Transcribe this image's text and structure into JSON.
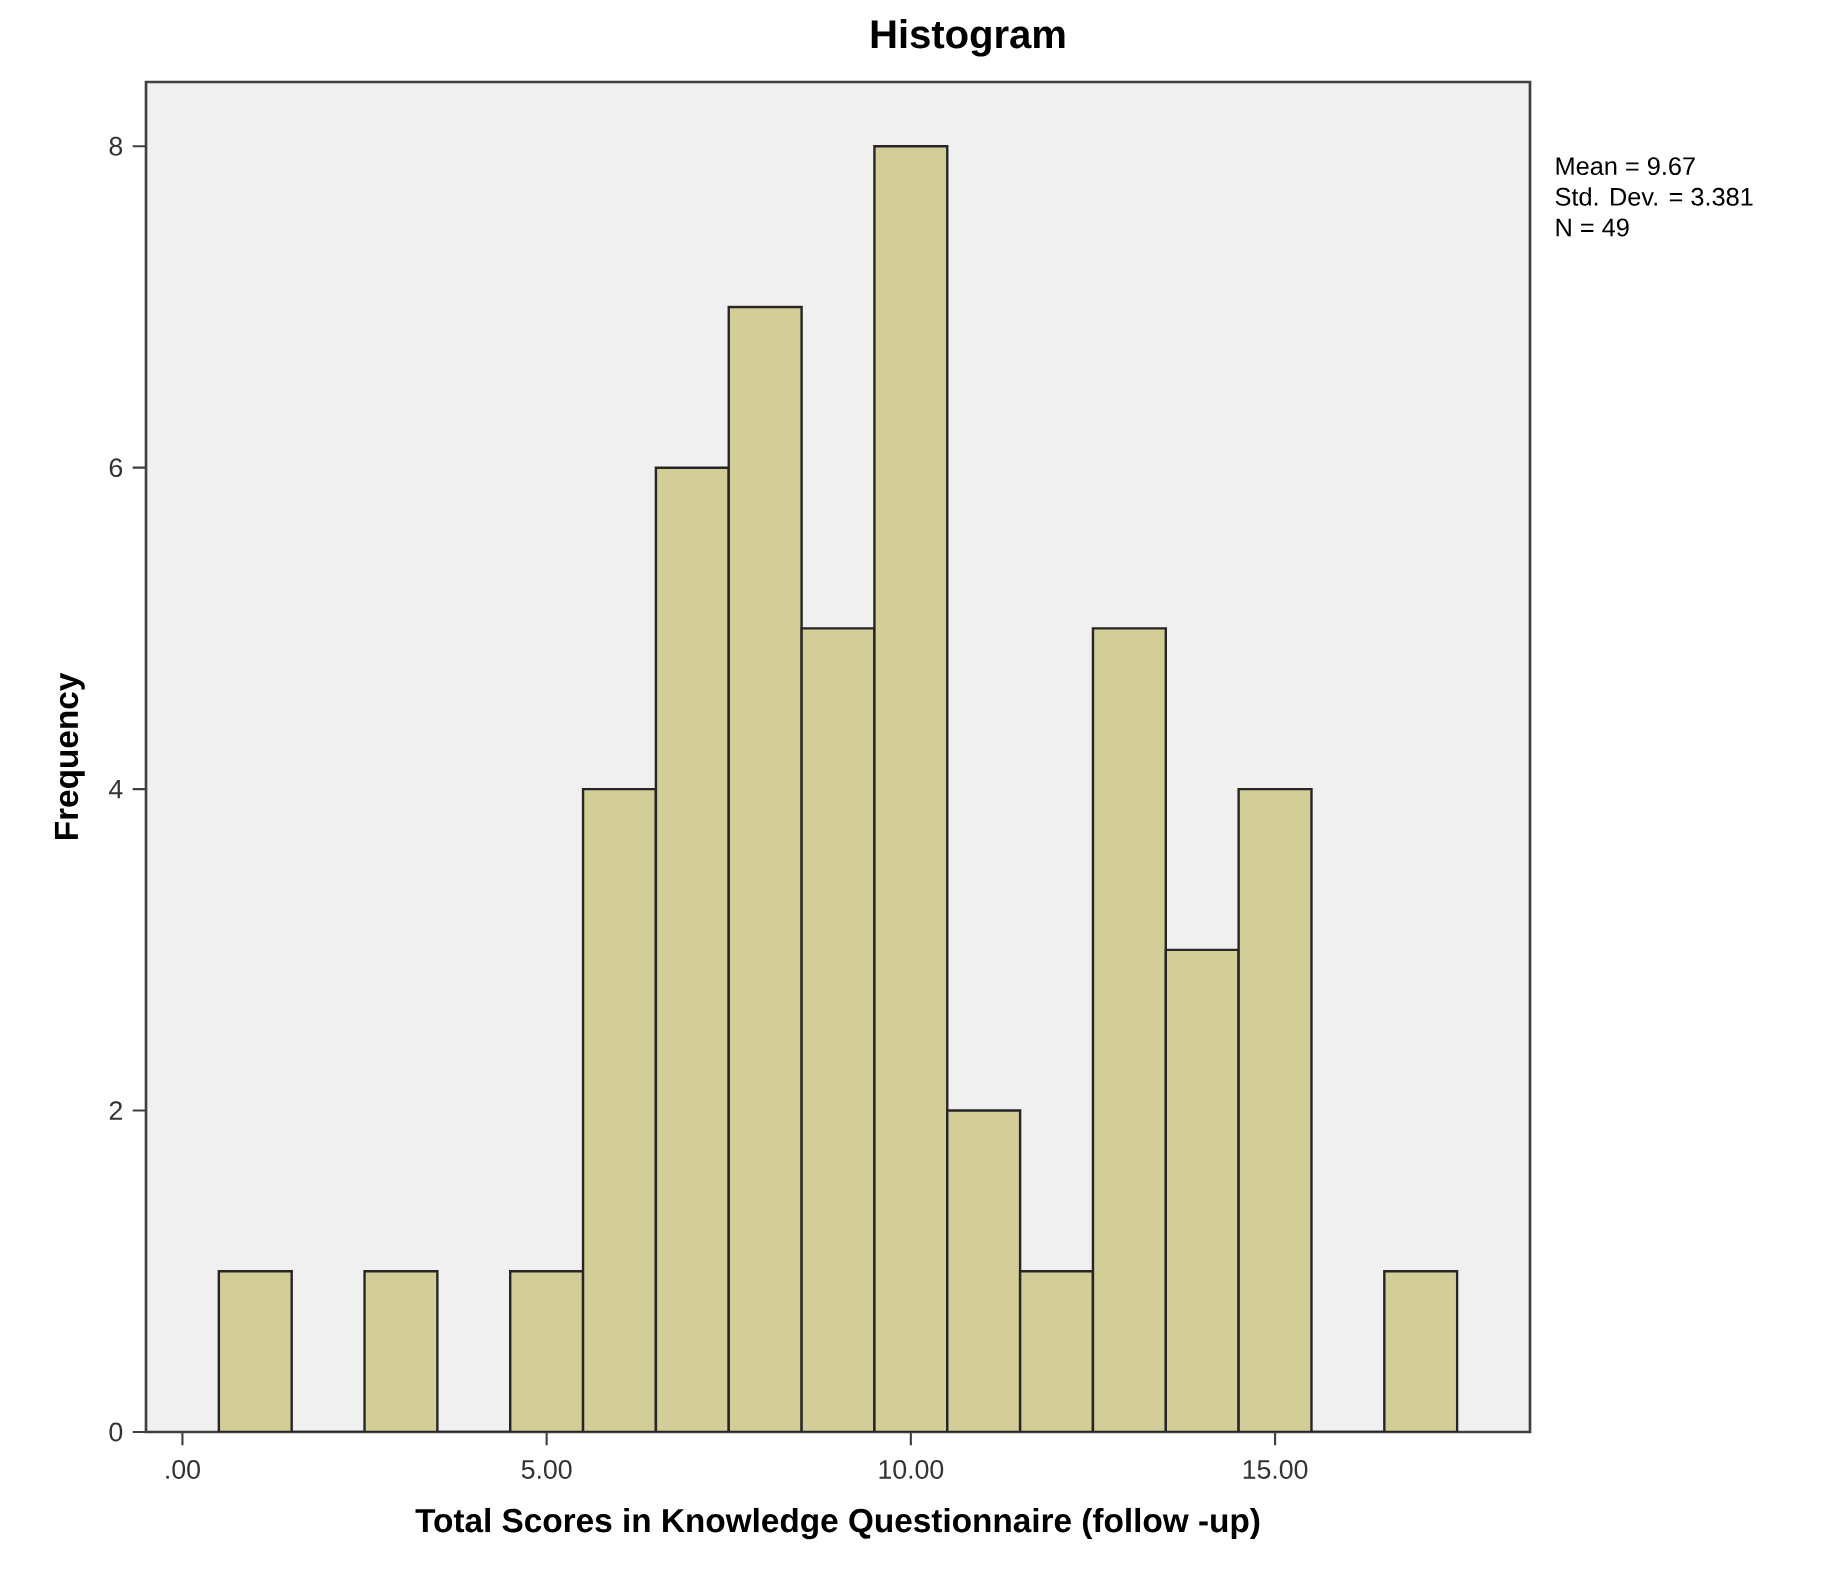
{
  "chart_data": {
    "type": "histogram",
    "title": "Histogram",
    "xlabel": "Total Scores in Knowledge Questionnaire (follow -up)",
    "ylabel": "Frequency",
    "bins": [
      0.5,
      1.5,
      2.5,
      3.5,
      4.5,
      5.5,
      6.5,
      7.5,
      8.5,
      9.5,
      10.5,
      11.5,
      12.5,
      13.5,
      14.5,
      15.5,
      16.5,
      17.5
    ],
    "values": [
      1,
      0,
      1,
      0,
      1,
      4,
      6,
      7,
      5,
      8,
      2,
      1,
      5,
      3,
      4,
      0,
      1
    ],
    "color": "#d3cd98",
    "xlim": [
      -0.5,
      18.5
    ],
    "ylim": [
      0,
      8.4
    ],
    "xticks": [
      {
        "value": 0,
        "label": ".00"
      },
      {
        "value": 5,
        "label": "5.00"
      },
      {
        "value": 10,
        "label": "10.00"
      },
      {
        "value": 15,
        "label": "15.00"
      }
    ],
    "yticks": [
      0,
      2,
      4,
      6,
      8
    ],
    "grid": false,
    "annotations": [
      "Mean = 9.67",
      "Std. Dev. = 3.381",
      "N = 49"
    ]
  }
}
